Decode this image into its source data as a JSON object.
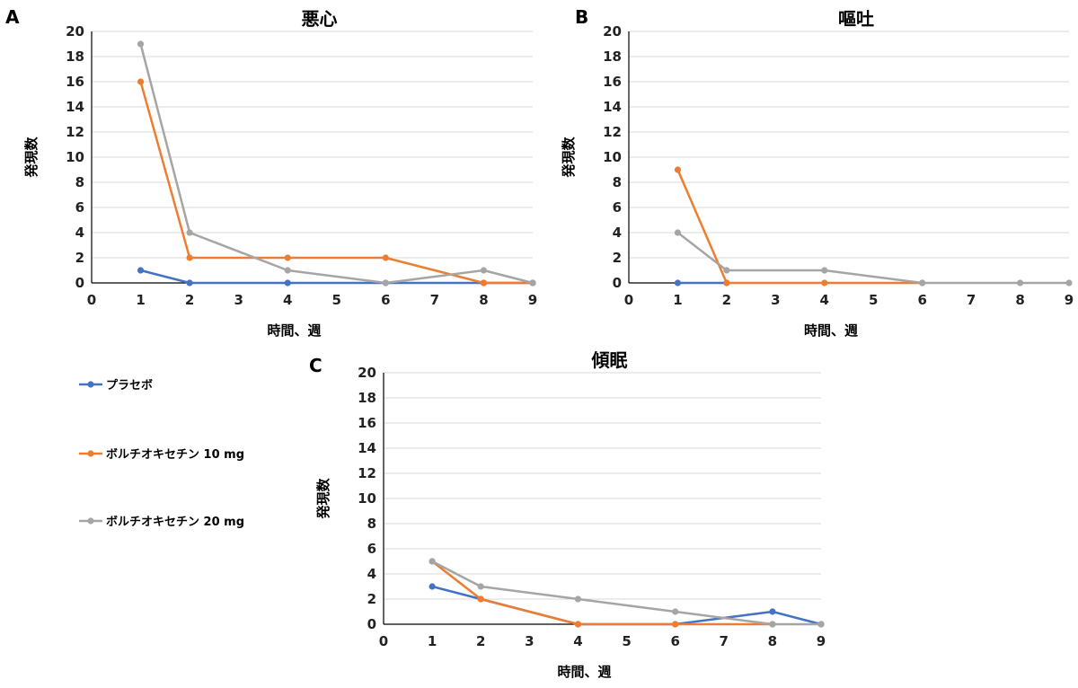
{
  "legend": [
    {
      "name": "プラセボ",
      "color": "#4472C4"
    },
    {
      "name": "ボルチオキセチン 10 mg",
      "color": "#ED7D31"
    },
    {
      "name": "ボルチオキセチン 20 mg",
      "color": "#A5A5A5"
    }
  ],
  "chart_data": [
    {
      "panel": "A",
      "type": "line",
      "title": "悪心",
      "xlabel": "時間、週",
      "ylabel": "発現数",
      "xlim": [
        0,
        9
      ],
      "ylim": [
        0,
        20
      ],
      "x_ticks": [
        0,
        1,
        2,
        3,
        4,
        5,
        6,
        7,
        8,
        9
      ],
      "y_ticks": [
        0,
        2,
        4,
        6,
        8,
        10,
        12,
        14,
        16,
        18,
        20
      ],
      "grid": true,
      "series": [
        {
          "name": "プラセボ",
          "color": "#4472C4",
          "x": [
            1,
            2,
            4,
            6,
            8,
            9
          ],
          "y": [
            1,
            0,
            0,
            0,
            0,
            0
          ]
        },
        {
          "name": "ボルチオキセチン 10 mg",
          "color": "#ED7D31",
          "x": [
            1,
            2,
            4,
            6,
            8,
            9
          ],
          "y": [
            16,
            2,
            2,
            2,
            0,
            0
          ]
        },
        {
          "name": "ボルチオキセチン 20 mg",
          "color": "#A5A5A5",
          "x": [
            1,
            2,
            4,
            6,
            8,
            9
          ],
          "y": [
            19,
            4,
            1,
            0,
            1,
            0
          ]
        }
      ]
    },
    {
      "panel": "B",
      "type": "line",
      "title": "嘔吐",
      "xlabel": "時間、週",
      "ylabel": "発現数",
      "xlim": [
        0,
        9
      ],
      "ylim": [
        0,
        20
      ],
      "x_ticks": [
        0,
        1,
        2,
        3,
        4,
        5,
        6,
        7,
        8,
        9
      ],
      "y_ticks": [
        0,
        2,
        4,
        6,
        8,
        10,
        12,
        14,
        16,
        18,
        20
      ],
      "grid": true,
      "series": [
        {
          "name": "プラセボ",
          "color": "#4472C4",
          "x": [
            1,
            2
          ],
          "y": [
            0,
            0
          ]
        },
        {
          "name": "ボルチオキセチン 10 mg",
          "color": "#ED7D31",
          "x": [
            1,
            2,
            4,
            6
          ],
          "y": [
            9,
            0,
            0,
            0
          ]
        },
        {
          "name": "ボルチオキセチン 20 mg",
          "color": "#A5A5A5",
          "x": [
            1,
            2,
            4,
            6,
            8,
            9
          ],
          "y": [
            4,
            1,
            1,
            0,
            0,
            0
          ]
        }
      ]
    },
    {
      "panel": "C",
      "type": "line",
      "title": "傾眠",
      "xlabel": "時間、週",
      "ylabel": "発現数",
      "xlim": [
        0,
        9
      ],
      "ylim": [
        0,
        20
      ],
      "x_ticks": [
        0,
        1,
        2,
        3,
        4,
        5,
        6,
        7,
        8,
        9
      ],
      "y_ticks": [
        0,
        2,
        4,
        6,
        8,
        10,
        12,
        14,
        16,
        18,
        20
      ],
      "grid": true,
      "series": [
        {
          "name": "プラセボ",
          "color": "#4472C4",
          "x": [
            1,
            2,
            4,
            6,
            8,
            9
          ],
          "y": [
            3,
            2,
            0,
            0,
            1,
            0
          ]
        },
        {
          "name": "ボルチオキセチン 10 mg",
          "color": "#ED7D31",
          "x": [
            1,
            2,
            4,
            6,
            8
          ],
          "y": [
            5,
            2,
            0,
            0,
            0
          ]
        },
        {
          "name": "ボルチオキセチン 20 mg",
          "color": "#A5A5A5",
          "x": [
            1,
            2,
            4,
            6,
            8,
            9
          ],
          "y": [
            5,
            3,
            2,
            1,
            0,
            0
          ]
        }
      ]
    }
  ]
}
